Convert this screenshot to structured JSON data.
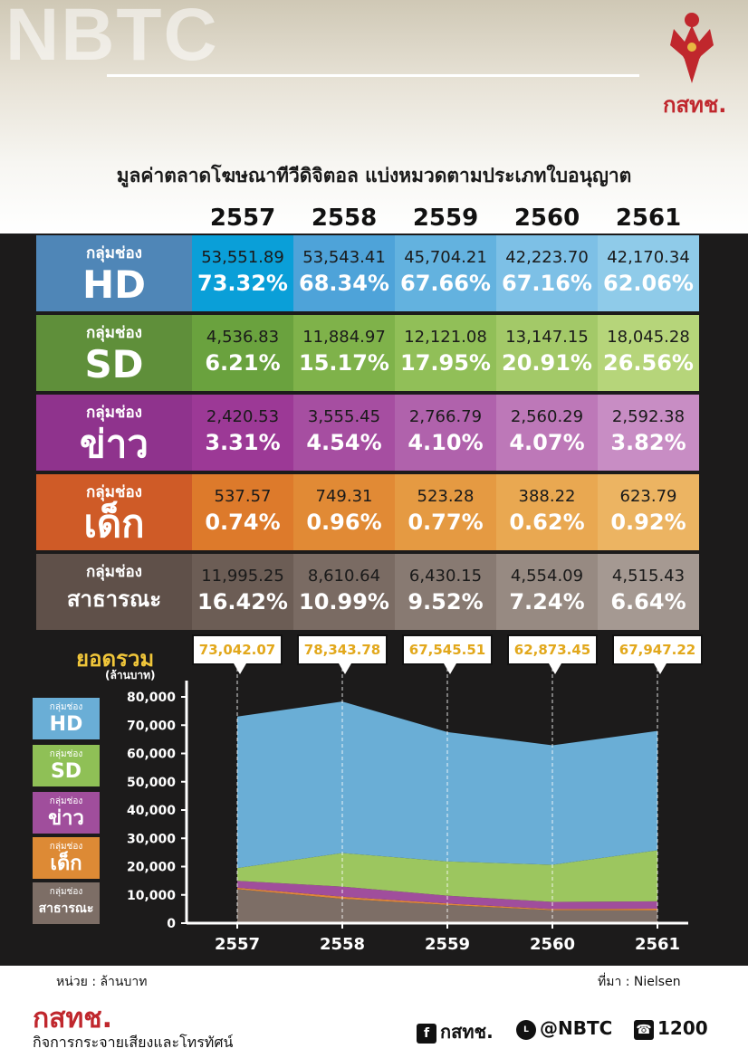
{
  "header": {
    "watermark": "NBTC",
    "logo_text": "กสทช.",
    "title": "มูลค่าตลาดโฆษณาทีวีดิจิตอล แบ่งหมวดตามประเภทใบอนุญาต"
  },
  "years": [
    "2557",
    "2558",
    "2559",
    "2560",
    "2561"
  ],
  "rows": [
    {
      "sub": "กลุ่มช่อง",
      "main": "HD",
      "label_color": "#4f86b7",
      "values": [
        "53,551.89",
        "53,543.41",
        "45,704.21",
        "42,223.70",
        "42,170.34"
      ],
      "percents": [
        "73.32%",
        "68.34%",
        "67.66%",
        "67.16%",
        "62.06%"
      ],
      "colors": [
        "#0a9fd8",
        "#4ea3d9",
        "#63b2df",
        "#7dc0e6",
        "#8fcbe9"
      ]
    },
    {
      "sub": "กลุ่มช่อง",
      "main": "SD",
      "label_color": "#5f8f3a",
      "values": [
        "4,536.83",
        "11,884.97",
        "12,121.08",
        "13,147.15",
        "18,045.28"
      ],
      "percents": [
        "6.21%",
        "15.17%",
        "17.95%",
        "20.91%",
        "26.56%"
      ],
      "colors": [
        "#6aa23e",
        "#7fb24a",
        "#91bf58",
        "#a3c968",
        "#b6d57a"
      ]
    },
    {
      "sub": "กลุ่มช่อง",
      "main": "ข่าว",
      "label_color": "#8f338d",
      "values": [
        "2,420.53",
        "3,555.45",
        "2,766.79",
        "2,560.29",
        "2,592.38"
      ],
      "percents": [
        "3.31%",
        "4.54%",
        "4.10%",
        "4.07%",
        "3.82%"
      ],
      "colors": [
        "#9c3996",
        "#a64ea1",
        "#b062ac",
        "#bd78b8",
        "#c88dc4"
      ]
    },
    {
      "sub": "กลุ่มช่อง",
      "main": "เด็ก",
      "label_color": "#cf5b27",
      "values": [
        "537.57",
        "749.31",
        "523.28",
        "388.22",
        "623.79"
      ],
      "percents": [
        "0.74%",
        "0.96%",
        "0.77%",
        "0.62%",
        "0.92%"
      ],
      "colors": [
        "#dd7a2b",
        "#e18a35",
        "#e59a42",
        "#e9a851",
        "#ecb462"
      ]
    },
    {
      "sub": "กลุ่มช่อง",
      "main": "สาธารณะ",
      "label_color": "#5f5049",
      "values": [
        "11,995.25",
        "8,610.64",
        "6,430.15",
        "4,554.09",
        "4,515.43"
      ],
      "percents": [
        "16.42%",
        "10.99%",
        "9.52%",
        "7.24%",
        "6.64%"
      ],
      "colors": [
        "#6c5d55",
        "#7a6b63",
        "#887a72",
        "#978a82",
        "#a59992"
      ]
    }
  ],
  "totals": {
    "label": "ยอดรวม",
    "unit": "(ล้านบาท)",
    "values": [
      "73,042.07",
      "78,343.78",
      "67,545.51",
      "62,873.45",
      "67,947.22"
    ]
  },
  "legend": [
    {
      "sub": "กลุ่มช่อง",
      "main": "HD",
      "color": "#6aaed6"
    },
    {
      "sub": "กลุ่มช่อง",
      "main": "SD",
      "color": "#8fc056"
    },
    {
      "sub": "กลุ่มช่อง",
      "main": "ข่าว",
      "color": "#a04e9c"
    },
    {
      "sub": "กลุ่มช่อง",
      "main": "เด็ก",
      "color": "#dd8a35"
    },
    {
      "sub": "กลุ่มช่อง",
      "main": "สาธารณะ",
      "color": "#7d6e66"
    }
  ],
  "chart_data": {
    "type": "area",
    "stacked": true,
    "x": [
      "2557",
      "2558",
      "2559",
      "2560",
      "2561"
    ],
    "ylim": [
      0,
      80000
    ],
    "yticks": [
      "0",
      "10,000",
      "20,000",
      "30,000",
      "40,000",
      "50,000",
      "60,000",
      "70,000",
      "80,000"
    ],
    "series": [
      {
        "name": "สาธารณะ",
        "color": "#7d6e66",
        "values": [
          11995.25,
          8610.64,
          6430.15,
          4554.09,
          4515.43
        ]
      },
      {
        "name": "เด็ก",
        "color": "#e0873a",
        "values": [
          537.57,
          749.31,
          523.28,
          388.22,
          623.79
        ]
      },
      {
        "name": "ข่าว",
        "color": "#a04e9c",
        "values": [
          2420.53,
          3555.45,
          2766.79,
          2560.29,
          2592.38
        ]
      },
      {
        "name": "SD",
        "color": "#9cc65f",
        "values": [
          4536.83,
          11884.97,
          12121.08,
          13147.15,
          18045.28
        ]
      },
      {
        "name": "HD",
        "color": "#6aaed6",
        "values": [
          53551.89,
          53543.41,
          45704.21,
          42223.7,
          42170.34
        ]
      }
    ]
  },
  "footer": {
    "unit": "หน่วย : ล้านบาท",
    "source": "ที่มา : Nielsen",
    "logo": "กสทช.",
    "org": "กิจการกระจายเสียงและโทรทัศน์",
    "facebook": "กสทช.",
    "line": "@NBTC",
    "phone": "1200"
  }
}
